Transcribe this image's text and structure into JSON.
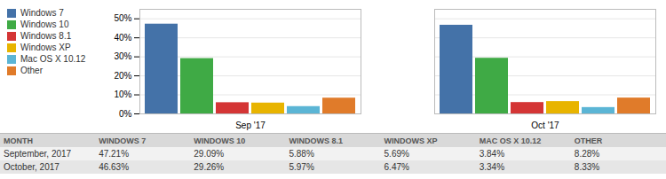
{
  "chart_data": {
    "type": "bar",
    "categories": [
      "Sep '17",
      "Oct '17"
    ],
    "series": [
      {
        "name": "Windows 7",
        "color": "#4472a8",
        "values": [
          47.21,
          46.63
        ]
      },
      {
        "name": "Windows 10",
        "color": "#3faa45",
        "values": [
          29.09,
          29.26
        ]
      },
      {
        "name": "Windows 8.1",
        "color": "#d43535",
        "values": [
          5.88,
          5.97
        ]
      },
      {
        "name": "Windows XP",
        "color": "#e8b400",
        "values": [
          5.69,
          6.47
        ]
      },
      {
        "name": "Mac OS X 10.12",
        "color": "#5bb5d5",
        "values": [
          3.84,
          3.34
        ]
      },
      {
        "name": "Other",
        "color": "#e07b2a",
        "values": [
          8.28,
          8.33
        ]
      }
    ],
    "ylim": [
      0,
      55
    ],
    "yticks": [
      {
        "value": 0,
        "label": "0%"
      },
      {
        "value": 10,
        "label": "10%"
      },
      {
        "value": 20,
        "label": "20%"
      },
      {
        "value": 30,
        "label": "30%"
      },
      {
        "value": 40,
        "label": "40%"
      },
      {
        "value": 50,
        "label": "50%"
      }
    ],
    "grid": true,
    "legend": "upper left",
    "table": {
      "columns": [
        "MONTH",
        "WINDOWS 7",
        "WINDOWS 10",
        "WINDOWS 8.1",
        "WINDOWS XP",
        "MAC OS X 10.12",
        "OTHER"
      ],
      "rows": [
        [
          "September, 2017",
          "47.21%",
          "29.09%",
          "5.88%",
          "5.69%",
          "3.84%",
          "8.28%"
        ],
        [
          "October, 2017",
          "46.63%",
          "29.26%",
          "5.97%",
          "6.47%",
          "3.34%",
          "8.33%"
        ]
      ]
    }
  }
}
